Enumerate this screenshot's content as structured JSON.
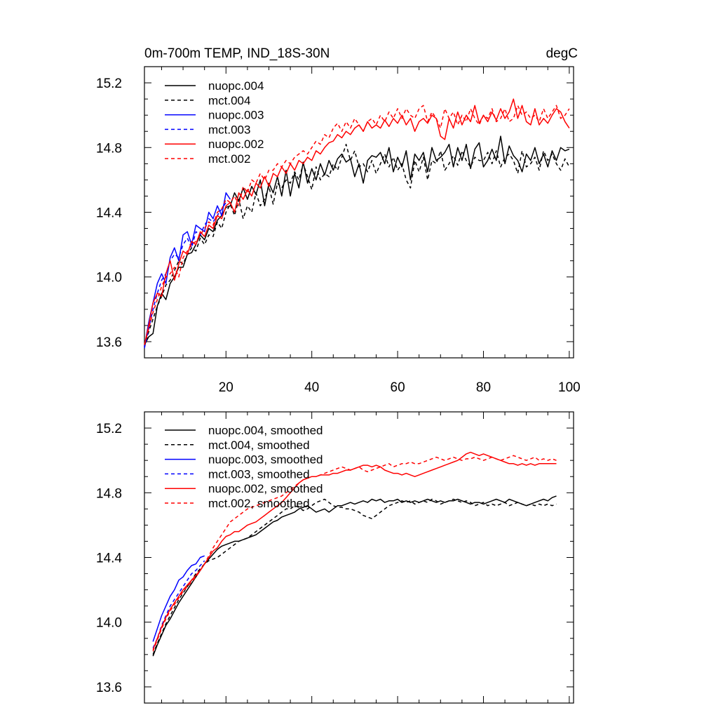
{
  "chart_data": [
    {
      "type": "line",
      "title_left": "0m-700m TEMP, IND_18S-30N",
      "title_right": "degC",
      "xlim": [
        1,
        101
      ],
      "ylim": [
        13.5,
        15.3
      ],
      "x_ticks": [
        20,
        40,
        60,
        80,
        100
      ],
      "x_tick_labels": [
        "20",
        "40",
        "60",
        "80",
        "100"
      ],
      "y_ticks": [
        13.6,
        14.0,
        14.4,
        14.8,
        15.2
      ],
      "y_tick_labels": [
        "13.6",
        "14.0",
        "14.4",
        "14.8",
        "15.2"
      ],
      "series": [
        {
          "name": "nuopc.004",
          "color": "#000000",
          "dash": "solid",
          "x_start": 1,
          "values": [
            13.58,
            13.63,
            13.65,
            13.82,
            13.9,
            13.86,
            13.96,
            14.0,
            14.06,
            14.06,
            14.14,
            14.15,
            14.2,
            14.26,
            14.23,
            14.3,
            14.28,
            14.35,
            14.38,
            14.43,
            14.44,
            14.52,
            14.47,
            14.55,
            14.48,
            14.56,
            14.51,
            14.6,
            14.44,
            14.58,
            14.52,
            14.62,
            14.5,
            14.66,
            14.5,
            14.64,
            14.55,
            14.71,
            14.58,
            14.67,
            14.6,
            14.7,
            14.63,
            14.72,
            14.66,
            14.73,
            14.76,
            14.71,
            14.73,
            14.62,
            14.7,
            14.58,
            14.72,
            14.75,
            14.74,
            14.77,
            14.7,
            14.8,
            14.65,
            14.74,
            14.68,
            14.78,
            14.6,
            14.76,
            14.72,
            14.77,
            14.65,
            14.8,
            14.72,
            14.74,
            14.77,
            14.82,
            14.68,
            14.8,
            14.72,
            14.82,
            14.67,
            14.79,
            14.83,
            14.68,
            14.72,
            14.79,
            14.72,
            14.87,
            14.7,
            14.81,
            14.75,
            14.72,
            14.65,
            14.76,
            14.72,
            14.8,
            14.7,
            14.76,
            14.68,
            14.78,
            14.72,
            14.8,
            14.78,
            14.79
          ]
        },
        {
          "name": "mct.004",
          "color": "#000000",
          "dash": "dashed",
          "x_start": 1,
          "values": [
            13.57,
            13.66,
            13.74,
            13.82,
            13.88,
            13.95,
            13.98,
            14.04,
            14.1,
            14.08,
            14.14,
            14.18,
            14.16,
            14.24,
            14.2,
            14.26,
            14.25,
            14.34,
            14.3,
            14.4,
            14.45,
            14.38,
            14.48,
            14.36,
            14.44,
            14.4,
            14.52,
            14.44,
            14.48,
            14.56,
            14.45,
            14.58,
            14.55,
            14.6,
            14.58,
            14.65,
            14.6,
            14.7,
            14.62,
            14.54,
            14.68,
            14.6,
            14.64,
            14.62,
            14.7,
            14.66,
            14.74,
            14.82,
            14.72,
            14.78,
            14.68,
            14.7,
            14.65,
            14.72,
            14.64,
            14.7,
            14.76,
            14.68,
            14.74,
            14.66,
            14.7,
            14.6,
            14.55,
            14.72,
            14.65,
            14.74,
            14.6,
            14.72,
            14.7,
            14.78,
            14.66,
            14.7,
            14.75,
            14.69,
            14.78,
            14.72,
            14.68,
            14.74,
            14.72,
            14.72,
            14.77,
            14.7,
            14.78,
            14.68,
            14.74,
            14.76,
            14.72,
            14.64,
            14.78,
            14.68,
            14.7,
            14.74,
            14.66,
            14.78,
            14.72,
            14.76,
            14.7,
            14.66,
            14.73,
            14.68
          ]
        },
        {
          "name": "nuopc.003",
          "color": "#0000ff",
          "dash": "solid",
          "x_start": 1,
          "values": [
            13.57,
            13.72,
            13.84,
            13.96,
            14.02,
            13.96,
            14.12,
            14.18,
            14.1,
            14.26,
            14.28,
            14.2,
            14.32,
            14.3,
            14.28,
            14.4,
            14.36,
            14.44,
            14.38,
            14.52,
            14.48
          ]
        },
        {
          "name": "mct.003",
          "color": "#0000ff",
          "dash": "dashed",
          "x_start": 1,
          "values": [
            13.56,
            13.68,
            13.8,
            13.9,
            13.98,
            14.02,
            14.1,
            14.14,
            14.12,
            14.2,
            14.24,
            14.18,
            14.28,
            14.26,
            14.32,
            14.36,
            14.34,
            14.38,
            14.42,
            14.46
          ]
        },
        {
          "name": "nuopc.002",
          "color": "#ff0000",
          "dash": "solid",
          "x_start": 1,
          "values": [
            13.58,
            13.7,
            13.84,
            13.9,
            13.88,
            14.02,
            14.1,
            13.98,
            14.08,
            14.16,
            14.14,
            14.22,
            14.2,
            14.28,
            14.25,
            14.32,
            14.3,
            14.38,
            14.36,
            14.44,
            14.46,
            14.4,
            14.52,
            14.48,
            14.54,
            14.5,
            14.58,
            14.55,
            14.62,
            14.56,
            14.64,
            14.62,
            14.68,
            14.64,
            14.7,
            14.66,
            14.72,
            14.7,
            14.74,
            14.72,
            14.78,
            14.76,
            14.8,
            14.83,
            14.84,
            14.88,
            14.86,
            14.9,
            14.88,
            14.92,
            14.94,
            14.9,
            14.96,
            14.92,
            14.94,
            14.92,
            14.97,
            14.93,
            14.98,
            14.95,
            15.0,
            14.94,
            14.98,
            14.9,
            14.96,
            14.98,
            14.95,
            15.0,
            14.98,
            14.87,
            14.85,
            14.98,
            14.92,
            15.02,
            14.94,
            15.0,
            14.96,
            15.06,
            14.95,
            15.0,
            14.96,
            15.02,
            14.97,
            15.04,
            14.98,
            15.02,
            15.1,
            14.98,
            15.06,
            14.96,
            14.94,
            15.04,
            14.94,
            14.98,
            14.95,
            15.0,
            15.04,
            15.02,
            14.96,
            14.92
          ]
        },
        {
          "name": "mct.002",
          "color": "#ff0000",
          "dash": "dashed",
          "x_start": 1,
          "values": [
            13.58,
            13.68,
            13.78,
            13.86,
            13.94,
            14.0,
            14.02,
            14.06,
            14.0,
            14.12,
            14.16,
            14.2,
            14.22,
            14.26,
            14.3,
            14.34,
            14.32,
            14.4,
            14.42,
            14.48,
            14.46,
            14.5,
            14.44,
            14.56,
            14.52,
            14.6,
            14.58,
            14.64,
            14.6,
            14.66,
            14.66,
            14.7,
            14.68,
            14.72,
            14.7,
            14.74,
            14.76,
            14.78,
            14.76,
            14.8,
            14.84,
            14.82,
            14.88,
            14.86,
            14.92,
            14.95,
            14.9,
            14.96,
            14.92,
            14.98,
            14.94,
            14.9,
            14.96,
            14.98,
            14.94,
            15.0,
            14.96,
            15.02,
            14.98,
            15.04,
            14.98,
            15.04,
            15.0,
            14.98,
            15.04,
            15.06,
            14.96,
            15.02,
            14.98,
            14.92,
            15.04,
            14.98,
            15.02,
            14.94,
            15.0,
            14.96,
            15.04,
            14.98,
            14.94,
            15.0,
            14.98,
            15.04,
            14.96,
            14.98,
            15.04,
            14.96,
            14.98,
            15.06,
            15.0,
            15.02,
            14.98,
            15.0,
            14.96,
            15.04,
            14.98,
            15.02,
            15.06,
            14.98,
            15.0,
            15.04
          ]
        }
      ]
    },
    {
      "type": "line",
      "xlim": [
        1,
        101
      ],
      "ylim": [
        13.5,
        15.3
      ],
      "x_ticks": [
        20,
        40,
        60,
        80,
        100
      ],
      "x_tick_labels": [],
      "y_ticks": [
        13.6,
        14.0,
        14.4,
        14.8,
        15.2
      ],
      "y_tick_labels": [
        "13.6",
        "14.0",
        "14.4",
        "14.8",
        "15.2"
      ],
      "series": [
        {
          "name": "nuopc.004, smoothed",
          "color": "#000000",
          "dash": "solid",
          "x_start": 3,
          "values": [
            13.79,
            13.86,
            13.92,
            13.98,
            14.02,
            14.07,
            14.12,
            14.16,
            14.2,
            14.24,
            14.28,
            14.32,
            14.36,
            14.39,
            14.42,
            14.45,
            14.47,
            14.48,
            14.49,
            14.5,
            14.5,
            14.51,
            14.52,
            14.53,
            14.54,
            14.56,
            14.58,
            14.6,
            14.62,
            14.63,
            14.65,
            14.66,
            14.67,
            14.68,
            14.7,
            14.71,
            14.72,
            14.7,
            14.68,
            14.69,
            14.7,
            14.68,
            14.7,
            14.72,
            14.72,
            14.73,
            14.74,
            14.73,
            14.74,
            14.75,
            14.74,
            14.76,
            14.75,
            14.76,
            14.74,
            14.75,
            14.75,
            14.76,
            14.74,
            14.75,
            14.74,
            14.75,
            14.74,
            14.75,
            14.76,
            14.75,
            14.74,
            14.75,
            14.74,
            14.75,
            14.75,
            14.76,
            14.75,
            14.74,
            14.73,
            14.74,
            14.74,
            14.73,
            14.74,
            14.75,
            14.76,
            14.75,
            14.74,
            14.76,
            14.75,
            14.74,
            14.73,
            14.72,
            14.73,
            14.74,
            14.75,
            14.76,
            14.75,
            14.77,
            14.78
          ]
        },
        {
          "name": "mct.004, smoothed",
          "color": "#000000",
          "dash": "dashed",
          "x_start": 3,
          "values": [
            13.8,
            13.87,
            13.93,
            13.99,
            14.04,
            14.09,
            14.14,
            14.18,
            14.22,
            14.26,
            14.3,
            14.33,
            14.36,
            14.38,
            14.39,
            14.4,
            14.42,
            14.44,
            14.46,
            14.48,
            14.5,
            14.51,
            14.52,
            14.54,
            14.56,
            14.58,
            14.6,
            14.62,
            14.64,
            14.66,
            14.68,
            14.7,
            14.7,
            14.72,
            14.71,
            14.69,
            14.7,
            14.72,
            14.74,
            14.75,
            14.76,
            14.74,
            14.72,
            14.71,
            14.71,
            14.7,
            14.7,
            14.69,
            14.68,
            14.66,
            14.65,
            14.64,
            14.66,
            14.68,
            14.7,
            14.72,
            14.73,
            14.74,
            14.75,
            14.74,
            14.75,
            14.73,
            14.74,
            14.75,
            14.74,
            14.76,
            14.75,
            14.73,
            14.74,
            14.75,
            14.76,
            14.75,
            14.74,
            14.75,
            14.74,
            14.72,
            14.73,
            14.74,
            14.72,
            14.73,
            14.72,
            14.73,
            14.74,
            14.72,
            14.73,
            14.74,
            14.73,
            14.72,
            14.73,
            14.72,
            14.73,
            14.72,
            14.73,
            14.72,
            14.73
          ]
        },
        {
          "name": "nuopc.003, smoothed",
          "color": "#0000ff",
          "dash": "solid",
          "x_start": 3,
          "values": [
            13.88,
            13.96,
            14.04,
            14.1,
            14.16,
            14.2,
            14.26,
            14.28,
            14.32,
            14.35,
            14.36,
            14.4,
            14.41
          ]
        },
        {
          "name": "mct.003, smoothed",
          "color": "#0000ff",
          "dash": "dashed",
          "x_start": 3,
          "values": [
            13.84,
            13.9,
            13.98,
            14.04,
            14.1,
            14.14,
            14.18,
            14.22,
            14.26,
            14.3,
            14.32,
            14.35,
            14.38
          ]
        },
        {
          "name": "nuopc.002, smoothed",
          "color": "#ff0000",
          "dash": "solid",
          "x_start": 3,
          "values": [
            13.83,
            13.9,
            13.97,
            14.03,
            14.08,
            14.12,
            14.16,
            14.2,
            14.23,
            14.26,
            14.29,
            14.32,
            14.36,
            14.4,
            14.44,
            14.46,
            14.5,
            14.53,
            14.54,
            14.56,
            14.56,
            14.58,
            14.6,
            14.61,
            14.62,
            14.64,
            14.66,
            14.68,
            14.7,
            14.72,
            14.74,
            14.77,
            14.8,
            14.83,
            14.86,
            14.88,
            14.89,
            14.9,
            14.9,
            14.91,
            14.91,
            14.91,
            14.92,
            14.92,
            14.93,
            14.94,
            14.94,
            14.95,
            14.96,
            14.97,
            14.97,
            14.96,
            14.97,
            14.96,
            14.94,
            14.93,
            14.92,
            14.92,
            14.91,
            14.92,
            14.91,
            14.9,
            14.91,
            14.92,
            14.93,
            14.94,
            14.95,
            14.96,
            14.97,
            14.98,
            14.99,
            15.0,
            15.02,
            15.04,
            15.05,
            15.04,
            15.03,
            15.04,
            15.03,
            15.02,
            15.01,
            15.0,
            14.99,
            14.98,
            14.98,
            14.97,
            14.98,
            14.97,
            14.98,
            14.97,
            14.98,
            14.98,
            14.98,
            14.98,
            14.98
          ]
        },
        {
          "name": "mct.002, smoothed",
          "color": "#ff0000",
          "dash": "dashed",
          "x_start": 3,
          "values": [
            13.82,
            13.89,
            13.96,
            14.02,
            14.07,
            14.11,
            14.15,
            14.19,
            14.22,
            14.25,
            14.28,
            14.32,
            14.36,
            14.41,
            14.46,
            14.5,
            14.54,
            14.58,
            14.62,
            14.64,
            14.66,
            14.68,
            14.7,
            14.71,
            14.72,
            14.73,
            14.74,
            14.75,
            14.76,
            14.77,
            14.78,
            14.8,
            14.82,
            14.84,
            14.86,
            14.88,
            14.89,
            14.9,
            14.9,
            14.91,
            14.92,
            14.93,
            14.94,
            14.95,
            14.96,
            14.95,
            14.94,
            14.95,
            14.96,
            14.94,
            14.93,
            14.94,
            14.95,
            14.96,
            14.97,
            14.98,
            14.96,
            14.97,
            14.98,
            14.98,
            14.99,
            14.98,
            14.98,
            14.99,
            15.0,
            15.01,
            15.02,
            15.01,
            15.0,
            15.01,
            15.02,
            15.01,
            15.0,
            15.01,
            15.01,
            15.02,
            15.01,
            15.0,
            15.01,
            15.02,
            15.01,
            15.0,
            15.01,
            15.02,
            15.03,
            15.02,
            15.01,
            15.0,
            15.01,
            15.02,
            15.0,
            15.01,
            15.0,
            15.01,
            15.0
          ]
        }
      ]
    }
  ]
}
